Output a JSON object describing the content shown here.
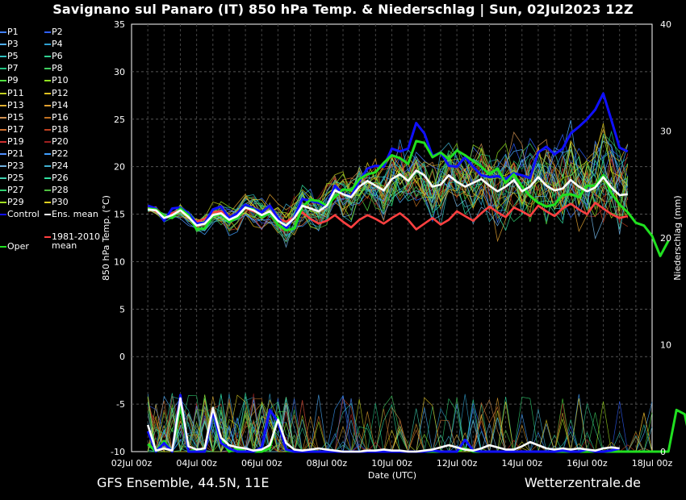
{
  "header": {
    "title": "Savignano sul Panaro  (IT)  850 hPa Temp. & Niederschlag | Sun, 02Jul2023 12Z"
  },
  "footer": {
    "left": "GFS Ensemble, 44.5N, 11E",
    "right": "Wetterzentrale.de"
  },
  "legend": {
    "members": [
      {
        "label": "P1",
        "color": "#3f7fff"
      },
      {
        "label": "P2",
        "color": "#2f5fff"
      },
      {
        "label": "P3",
        "color": "#4fb0ff"
      },
      {
        "label": "P4",
        "color": "#2fa0d0"
      },
      {
        "label": "P5",
        "color": "#30c0c0"
      },
      {
        "label": "P6",
        "color": "#30d090"
      },
      {
        "label": "P7",
        "color": "#20c080"
      },
      {
        "label": "P8",
        "color": "#40d060"
      },
      {
        "label": "P9",
        "color": "#50e040"
      },
      {
        "label": "P10",
        "color": "#90e020"
      },
      {
        "label": "P11",
        "color": "#c0d020"
      },
      {
        "label": "P12",
        "color": "#e0c020"
      },
      {
        "label": "P13",
        "color": "#e0b030"
      },
      {
        "label": "P14",
        "color": "#e0a030"
      },
      {
        "label": "P15",
        "color": "#d09050"
      },
      {
        "label": "P16",
        "color": "#c07020"
      },
      {
        "label": "P17",
        "color": "#d07030"
      },
      {
        "label": "P18",
        "color": "#c04020"
      },
      {
        "label": "P19",
        "color": "#d03030"
      },
      {
        "label": "P20",
        "color": "#a02020"
      },
      {
        "label": "P21",
        "color": "#4f8fff"
      },
      {
        "label": "P22",
        "color": "#3f9fff"
      },
      {
        "label": "P23",
        "color": "#6fb0e0"
      },
      {
        "label": "P24",
        "color": "#40b0d0"
      },
      {
        "label": "P25",
        "color": "#40d0b0"
      },
      {
        "label": "P26",
        "color": "#30e0a0"
      },
      {
        "label": "P27",
        "color": "#30d070"
      },
      {
        "label": "P28",
        "color": "#50c040"
      },
      {
        "label": "P29",
        "color": "#a0e020"
      },
      {
        "label": "P30",
        "color": "#e0d020"
      }
    ],
    "control": {
      "label": "Control",
      "color": "#1010ff"
    },
    "ens_mean": {
      "label": "Ens. mean",
      "color": "#ffffff"
    },
    "climate": {
      "label_line1": "1981-2010",
      "label_line2": "mean",
      "color": "#ff4040"
    },
    "oper": {
      "label": "Oper",
      "color": "#20e020"
    }
  },
  "chart_data": {
    "type": "line",
    "xlabel": "Date (UTC)",
    "ylabel": "850 hPa Temp. (°C)",
    "ylabel_right": "Niederschlag (mm)",
    "ylim": [
      -10,
      35
    ],
    "ylim_right": [
      0,
      40
    ],
    "y_ticks": [
      35,
      30,
      25,
      20,
      15,
      10,
      5,
      0,
      -5,
      -10
    ],
    "y_ticks_right": [
      40,
      30,
      20,
      10,
      0
    ],
    "x_range_days": [
      0,
      16
    ],
    "x_ticks": [
      {
        "label": "02Jul 00z",
        "day": 0
      },
      {
        "label": "04Jul 00z",
        "day": 2
      },
      {
        "label": "06Jul 00z",
        "day": 4
      },
      {
        "label": "08Jul 00z",
        "day": 6
      },
      {
        "label": "10Jul 00z",
        "day": 8
      },
      {
        "label": "12Jul 00z",
        "day": 10
      },
      {
        "label": "14Jul 00z",
        "day": 12
      },
      {
        "label": "16Jul 00z",
        "day": 14
      },
      {
        "label": "18Jul 00z",
        "day": 16
      }
    ],
    "grid": true,
    "temperature_series": [
      {
        "name": "Oper",
        "day_start": 0.5,
        "step": 0.25,
        "values": [
          15.6,
          15.5,
          14.8,
          14.6,
          15.6,
          14.9,
          13.4,
          13.5,
          14.8,
          15.0,
          14.2,
          14.6,
          15.7,
          15.5,
          14.7,
          15.2,
          13.9,
          13.3,
          13.5,
          15.8,
          16.5,
          16.4,
          15.9,
          16.8,
          17.6,
          17.5,
          18.7,
          19.2,
          19.4,
          20.4,
          21.2,
          20.9,
          20.3,
          22.7,
          22.5,
          21.0,
          21.5,
          20.8,
          21.7,
          21.2,
          20.6,
          20.0,
          19.2,
          19.8,
          18.3,
          19.2,
          17.9,
          16.9,
          16.2,
          15.8,
          16.0,
          17.0,
          17.1,
          16.8,
          18.0,
          18.0,
          19.1,
          17.2,
          16.0,
          15.2,
          14.1,
          13.8,
          12.7,
          10.6,
          12.2
        ]
      },
      {
        "name": "Control",
        "day_start": 0.5,
        "step": 0.25,
        "values": [
          15.9,
          15.6,
          14.3,
          15.6,
          15.7,
          15.1,
          14.0,
          14.1,
          15.5,
          15.8,
          14.6,
          15.1,
          16.0,
          15.6,
          15.2,
          15.9,
          14.6,
          13.5,
          14.7,
          16.6,
          16.4,
          16.2,
          15.8,
          18.0,
          17.1,
          16.9,
          18.5,
          19.8,
          20.1,
          20.0,
          21.9,
          21.6,
          21.9,
          24.6,
          23.5,
          21.1,
          21.5,
          20.1,
          20.0,
          21.0,
          20.0,
          19.1,
          18.9,
          19.0,
          18.7,
          19.3,
          19.1,
          18.8,
          21.5,
          22.1,
          21.3,
          21.9,
          23.5,
          24.2,
          25.0,
          26.0,
          27.7,
          24.9,
          22.0,
          21.6
        ]
      },
      {
        "name": "Ens. mean",
        "day_start": 0.5,
        "step": 0.25,
        "values": [
          15.5,
          15.4,
          14.6,
          14.9,
          15.4,
          14.7,
          13.8,
          14.0,
          14.9,
          15.1,
          14.4,
          14.8,
          15.7,
          15.4,
          14.9,
          15.3,
          14.3,
          13.8,
          14.6,
          15.9,
          15.6,
          15.3,
          15.9,
          17.5,
          17.1,
          16.8,
          17.9,
          18.5,
          18.0,
          17.5,
          18.7,
          19.2,
          18.5,
          19.6,
          19.1,
          17.9,
          18.1,
          19.1,
          18.4,
          17.9,
          18.3,
          18.7,
          18.0,
          17.4,
          17.9,
          18.6,
          17.4,
          17.9,
          18.9,
          18.0,
          17.5,
          17.7,
          18.6,
          17.9,
          17.4,
          17.8,
          18.9,
          17.8,
          17.0,
          17.1
        ]
      },
      {
        "name": "1981-2010 mean",
        "day_start": 0.5,
        "step": 0.25,
        "values": [
          15.8,
          15.3,
          14.7,
          15.1,
          15.4,
          14.9,
          14.2,
          14.5,
          15.2,
          15.3,
          14.7,
          15.0,
          15.6,
          15.3,
          14.9,
          15.3,
          14.5,
          14.2,
          14.7,
          15.2,
          14.5,
          14.0,
          14.3,
          14.9,
          14.2,
          13.6,
          14.4,
          14.9,
          14.5,
          14.0,
          14.6,
          15.1,
          14.4,
          13.4,
          14.0,
          14.6,
          13.9,
          14.4,
          15.3,
          14.8,
          14.3,
          15.1,
          15.8,
          15.2,
          14.7,
          15.7,
          15.3,
          14.8,
          15.9,
          15.3,
          14.8,
          15.6,
          16.1,
          15.5,
          15.0,
          16.2,
          15.6,
          15.0,
          14.6,
          14.8
        ]
      }
    ],
    "precipitation_series": [
      {
        "name": "Oper",
        "day_start": 0.5,
        "step": 0.25,
        "values": [
          0.7,
          0,
          1,
          0,
          4.3,
          0,
          0.2,
          0,
          4.0,
          1.1,
          0,
          0.3,
          0,
          0,
          0,
          0.3,
          3.2,
          0.1,
          0,
          0,
          0.1,
          0,
          0,
          0,
          0,
          0,
          0,
          0,
          0,
          0,
          0,
          0,
          0,
          0,
          0,
          0,
          0,
          0,
          0,
          0.3,
          0,
          0,
          0,
          0,
          0,
          0,
          0,
          0,
          0,
          0,
          0,
          0,
          0,
          0,
          0,
          0,
          0,
          0,
          0,
          0,
          0,
          0,
          0,
          0,
          0,
          3.9,
          3.5,
          0,
          0,
          0,
          0,
          0,
          0,
          0,
          0,
          0,
          0,
          0,
          0,
          0,
          0.2,
          0,
          0,
          0,
          0,
          0,
          0,
          0,
          0,
          0,
          0,
          0,
          0,
          0,
          0,
          0,
          0,
          0,
          0,
          0,
          0,
          0,
          0,
          1.2,
          3.6,
          4.9,
          6.1,
          6.9,
          0
        ]
      },
      {
        "name": "Control",
        "day_start": 0.5,
        "step": 0.25,
        "values": [
          1.9,
          0,
          0.8,
          0,
          5.3,
          0,
          0,
          0,
          3.8,
          0.8,
          0.3,
          0,
          0,
          0,
          0.4,
          3.9,
          2.8,
          0.2,
          0,
          0,
          0,
          0,
          0,
          0,
          0,
          0,
          0,
          0,
          0,
          0,
          0,
          0,
          0,
          0,
          0,
          0.1,
          0,
          0,
          0,
          1.1,
          0.1,
          0,
          0,
          0,
          0,
          0,
          0,
          0,
          0,
          0,
          0,
          0.1,
          0,
          0,
          0.2,
          0,
          0,
          0.1,
          0.3
        ]
      },
      {
        "name": "Ens. mean",
        "day_start": 0.5,
        "step": 0.25,
        "values": [
          2.5,
          0.1,
          0.3,
          0.1,
          5.0,
          0.5,
          0.2,
          0.3,
          4.1,
          1.3,
          0.6,
          0.4,
          0.3,
          0.1,
          0.2,
          0.6,
          3.0,
          0.8,
          0.2,
          0.1,
          0.2,
          0.3,
          0.2,
          0.1,
          0.0,
          0.0,
          0.0,
          0.1,
          0.1,
          0.2,
          0.1,
          0.1,
          0.0,
          0.0,
          0.1,
          0.2,
          0.4,
          0.6,
          0.4,
          0.2,
          0.1,
          0.3,
          0.6,
          0.4,
          0.2,
          0.2,
          0.5,
          0.9,
          0.6,
          0.3,
          0.2,
          0.3,
          0.2,
          0.3,
          0.2,
          0.1,
          0.3,
          0.4,
          0.3
        ]
      }
    ]
  }
}
